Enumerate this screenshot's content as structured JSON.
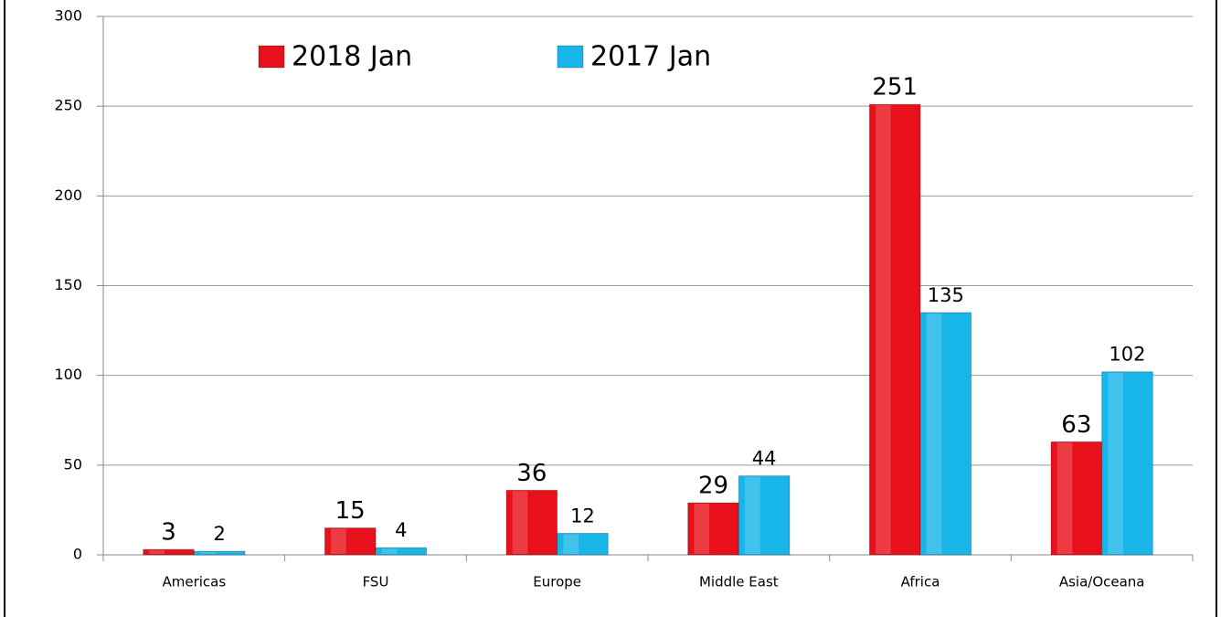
{
  "chart_data": {
    "type": "bar",
    "categories": [
      "Americas",
      "FSU",
      "Europe",
      "Middle East",
      "Africa",
      "Asia/Oceana"
    ],
    "series": [
      {
        "name": "2018 Jan",
        "color": "#e8101a",
        "values": [
          3,
          15,
          36,
          29,
          251,
          63
        ]
      },
      {
        "name": "2017 Jan",
        "color": "#17b5e8",
        "values": [
          2,
          4,
          12,
          44,
          135,
          102
        ]
      }
    ],
    "ylim": [
      0,
      300
    ],
    "yticks": [
      0,
      50,
      100,
      150,
      200,
      250,
      300
    ],
    "grid": true,
    "legend": "top"
  }
}
